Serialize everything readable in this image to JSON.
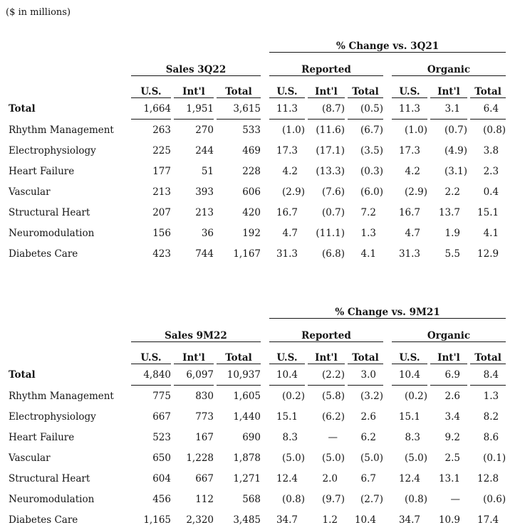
{
  "note": "($ in millions)",
  "tables": [
    {
      "change_header": "% Change vs. 3Q21",
      "sales_header": "Sales 3Q22",
      "reported_header": "Reported",
      "organic_header": "Organic",
      "columns": [
        "U.S.",
        "Int'l",
        "Total"
      ],
      "rows": [
        {
          "label": "Total",
          "bold": true,
          "sales": [
            "1,664",
            "1,951",
            "3,615"
          ],
          "reported": [
            "11.3",
            "(8.7)",
            "(0.5)"
          ],
          "organic": [
            "11.3",
            "3.1",
            "6.4"
          ]
        },
        {
          "label": "Rhythm Management",
          "bold": false,
          "sales": [
            "263",
            "270",
            "533"
          ],
          "reported": [
            "(1.0)",
            "(11.6)",
            "(6.7)"
          ],
          "organic": [
            "(1.0)",
            "(0.7)",
            "(0.8)"
          ]
        },
        {
          "label": "Electrophysiology",
          "bold": false,
          "sales": [
            "225",
            "244",
            "469"
          ],
          "reported": [
            "17.3",
            "(17.1)",
            "(3.5)"
          ],
          "organic": [
            "17.3",
            "(4.9)",
            "3.8"
          ]
        },
        {
          "label": "Heart Failure",
          "bold": false,
          "sales": [
            "177",
            "51",
            "228"
          ],
          "reported": [
            "4.2",
            "(13.3)",
            "(0.3)"
          ],
          "organic": [
            "4.2",
            "(3.1)",
            "2.3"
          ]
        },
        {
          "label": "Vascular",
          "bold": false,
          "sales": [
            "213",
            "393",
            "606"
          ],
          "reported": [
            "(2.9)",
            "(7.6)",
            "(6.0)"
          ],
          "organic": [
            "(2.9)",
            "2.2",
            "0.4"
          ]
        },
        {
          "label": "Structural Heart",
          "bold": false,
          "sales": [
            "207",
            "213",
            "420"
          ],
          "reported": [
            "16.7",
            "(0.7)",
            "7.2"
          ],
          "organic": [
            "16.7",
            "13.7",
            "15.1"
          ]
        },
        {
          "label": "Neuromodulation",
          "bold": false,
          "sales": [
            "156",
            "36",
            "192"
          ],
          "reported": [
            "4.7",
            "(11.1)",
            "1.3"
          ],
          "organic": [
            "4.7",
            "1.9",
            "4.1"
          ]
        },
        {
          "label": "Diabetes Care",
          "bold": false,
          "sales": [
            "423",
            "744",
            "1,167"
          ],
          "reported": [
            "31.3",
            "(6.8)",
            "4.1"
          ],
          "organic": [
            "31.3",
            "5.5",
            "12.9"
          ]
        }
      ]
    },
    {
      "change_header": "% Change vs. 9M21",
      "sales_header": "Sales 9M22",
      "reported_header": "Reported",
      "organic_header": "Organic",
      "columns": [
        "U.S.",
        "Int'l",
        "Total"
      ],
      "rows": [
        {
          "label": "Total",
          "bold": true,
          "sales": [
            "4,840",
            "6,097",
            "10,937"
          ],
          "reported": [
            "10.4",
            "(2.2)",
            "3.0"
          ],
          "organic": [
            "10.4",
            "6.9",
            "8.4"
          ]
        },
        {
          "label": "Rhythm Management",
          "bold": false,
          "sales": [
            "775",
            "830",
            "1,605"
          ],
          "reported": [
            "(0.2)",
            "(5.8)",
            "(3.2)"
          ],
          "organic": [
            "(0.2)",
            "2.6",
            "1.3"
          ]
        },
        {
          "label": "Electrophysiology",
          "bold": false,
          "sales": [
            "667",
            "773",
            "1,440"
          ],
          "reported": [
            "15.1",
            "(6.2)",
            "2.6"
          ],
          "organic": [
            "15.1",
            "3.4",
            "8.2"
          ]
        },
        {
          "label": "Heart Failure",
          "bold": false,
          "sales": [
            "523",
            "167",
            "690"
          ],
          "reported": [
            "8.3",
            "—",
            "6.2"
          ],
          "organic": [
            "8.3",
            "9.2",
            "8.6"
          ]
        },
        {
          "label": "Vascular",
          "bold": false,
          "sales": [
            "650",
            "1,228",
            "1,878"
          ],
          "reported": [
            "(5.0)",
            "(5.0)",
            "(5.0)"
          ],
          "organic": [
            "(5.0)",
            "2.5",
            "(0.1)"
          ]
        },
        {
          "label": "Structural Heart",
          "bold": false,
          "sales": [
            "604",
            "667",
            "1,271"
          ],
          "reported": [
            "12.4",
            "2.0",
            "6.7"
          ],
          "organic": [
            "12.4",
            "13.1",
            "12.8"
          ]
        },
        {
          "label": "Neuromodulation",
          "bold": false,
          "sales": [
            "456",
            "112",
            "568"
          ],
          "reported": [
            "(0.8)",
            "(9.7)",
            "(2.7)"
          ],
          "organic": [
            "(0.8)",
            "—",
            "(0.6)"
          ]
        },
        {
          "label": "Diabetes Care",
          "bold": false,
          "sales": [
            "1,165",
            "2,320",
            "3,485"
          ],
          "reported": [
            "34.7",
            "1.2",
            "10.4"
          ],
          "organic": [
            "34.7",
            "10.9",
            "17.4"
          ]
        }
      ]
    }
  ]
}
